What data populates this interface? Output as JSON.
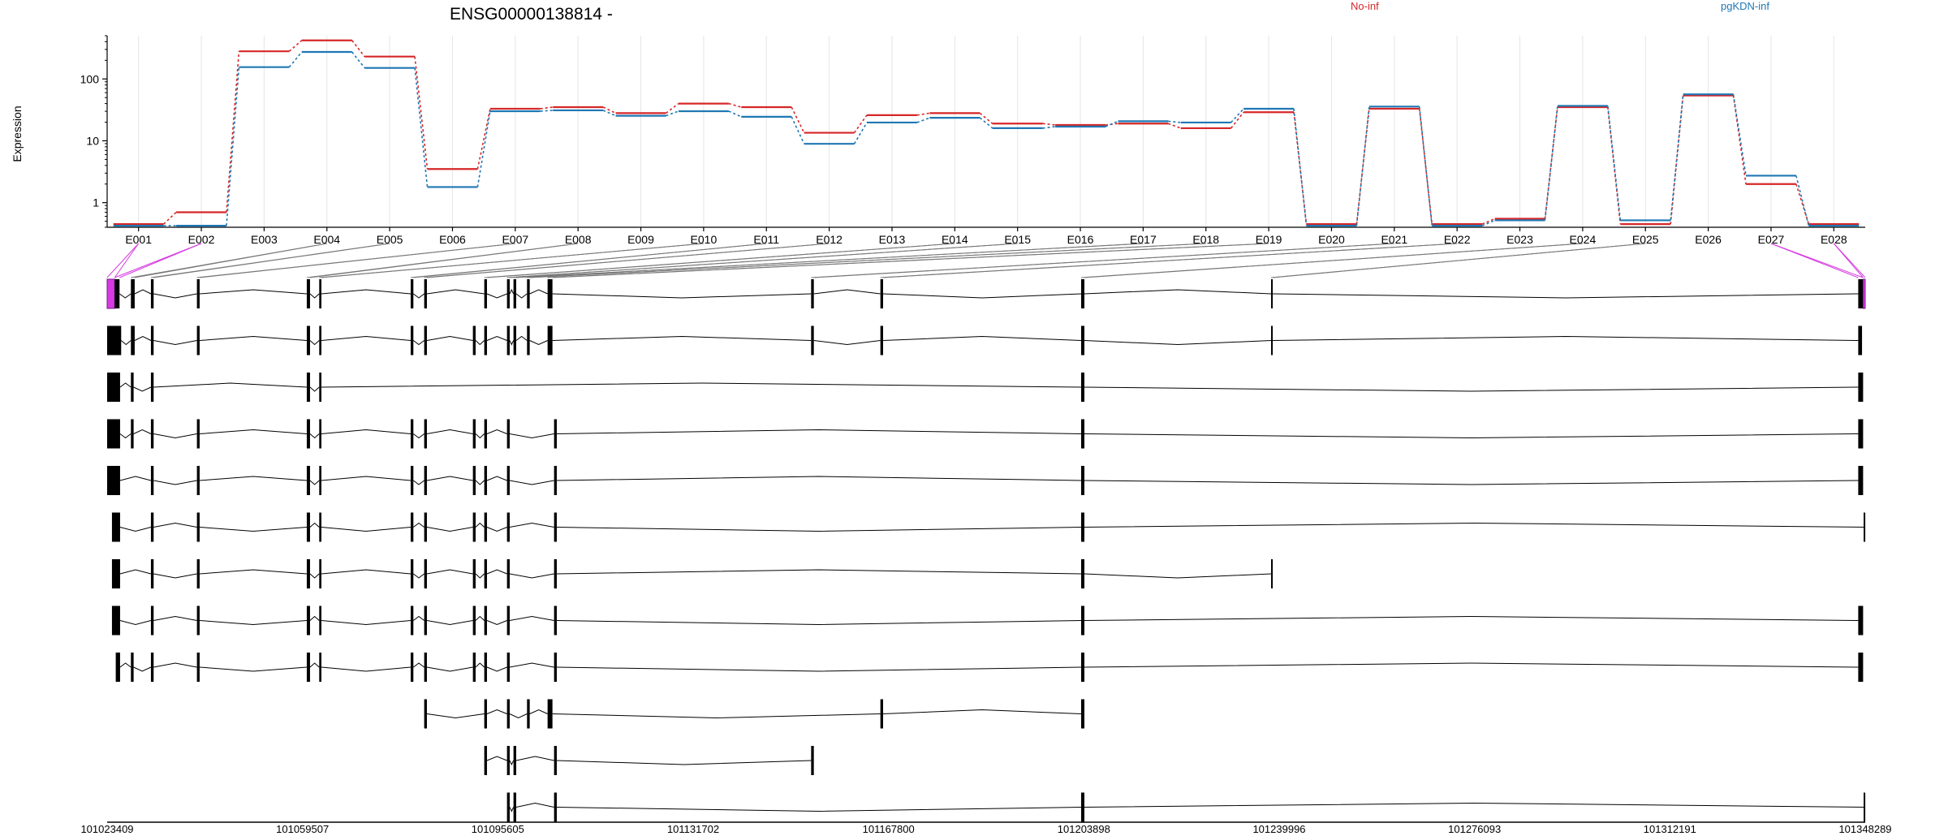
{
  "chart_data": {
    "type": "line",
    "title": "ENSG00000138814 -",
    "ylabel": "Expression",
    "yscale": "log",
    "ylim": [
      0.4,
      500
    ],
    "yticks": [
      1,
      10,
      100
    ],
    "grid": true,
    "legend_position": "top-right",
    "categories": [
      "E001",
      "E002",
      "E003",
      "E004",
      "E005",
      "E006",
      "E007",
      "E008",
      "E009",
      "E010",
      "E011",
      "E012",
      "E013",
      "E014",
      "E015",
      "E016",
      "E017",
      "E018",
      "E019",
      "E020",
      "E021",
      "E022",
      "E023",
      "E024",
      "E025",
      "E026",
      "E027",
      "E028"
    ],
    "series": [
      {
        "name": "No-inf",
        "color": "#d62728",
        "values": [
          0.45,
          0.7,
          280,
          420,
          230,
          3.5,
          33,
          35,
          28,
          40,
          35,
          13.5,
          26,
          28,
          19,
          18,
          19,
          16,
          29,
          0.45,
          33,
          0.45,
          0.55,
          35,
          0.45,
          54,
          2,
          0.45
        ]
      },
      {
        "name": "pgKDN-inf",
        "color": "#1f77b4",
        "values": [
          0.45,
          0.45,
          165,
          290,
          160,
          1.9,
          32,
          33,
          27,
          32,
          26,
          9.5,
          21,
          25,
          17,
          18,
          22,
          21,
          35,
          0.45,
          38,
          0.45,
          0.55,
          39,
          0.55,
          60,
          2.9,
          0.45
        ]
      }
    ],
    "exon_highlight_color": "#d63ae0",
    "exon_highlight_index": 25,
    "genomic_axis": {
      "range": [
        101023409,
        101348289
      ],
      "tick_labels": [
        "101023409",
        "101059507",
        "101095605",
        "101131702",
        "101167800",
        "101203898",
        "101239996",
        "101276093",
        "101312191",
        "101348289"
      ]
    },
    "exon_regions": [
      [
        101023409,
        101024800
      ],
      [
        101024800,
        101025700
      ],
      [
        101027800,
        101028500
      ],
      [
        101031500,
        101032000
      ],
      [
        101040000,
        101040500
      ],
      [
        101060300,
        101060900
      ],
      [
        101062600,
        101063000
      ],
      [
        101079500,
        101080000
      ],
      [
        101082000,
        101082500
      ],
      [
        101093100,
        101093600
      ],
      [
        101097300,
        101097800
      ],
      [
        101098500,
        101099000
      ],
      [
        101101000,
        101101500
      ],
      [
        101104800,
        101105700
      ],
      [
        101153500,
        101154000
      ],
      [
        101166300,
        101166800
      ],
      [
        101203400,
        101204000
      ],
      [
        101238500,
        101238800
      ],
      [
        101347000,
        101347900
      ],
      [
        101347900,
        101348289
      ]
    ],
    "transcripts": [
      {
        "exons": [
          [
            101023409,
            101026000
          ],
          [
            101027800,
            101028500
          ],
          [
            101031500,
            101032000
          ],
          [
            101040000,
            101040500
          ],
          [
            101060300,
            101060900
          ],
          [
            101062600,
            101063000
          ],
          [
            101079500,
            101080000
          ],
          [
            101082000,
            101082500
          ],
          [
            101091000,
            101091500
          ],
          [
            101093100,
            101093600
          ],
          [
            101097300,
            101097800
          ],
          [
            101098500,
            101099000
          ],
          [
            101101000,
            101101500
          ],
          [
            101104800,
            101105700
          ],
          [
            101153500,
            101154000
          ],
          [
            101166300,
            101166800
          ],
          [
            101203400,
            101204000
          ],
          [
            101238500,
            101238800
          ],
          [
            101347000,
            101347700
          ]
        ]
      },
      {
        "exons": [
          [
            101023409,
            101025800
          ],
          [
            101027800,
            101028300
          ],
          [
            101031500,
            101032000
          ],
          [
            101060300,
            101060900
          ],
          [
            101062600,
            101063000
          ],
          [
            101203400,
            101204000
          ],
          [
            101347000,
            101347900
          ]
        ]
      },
      {
        "exons": [
          [
            101023409,
            101025800
          ],
          [
            101027800,
            101028300
          ],
          [
            101031500,
            101032000
          ],
          [
            101040000,
            101040500
          ],
          [
            101060300,
            101060900
          ],
          [
            101062600,
            101063000
          ],
          [
            101079500,
            101080000
          ],
          [
            101082000,
            101082500
          ],
          [
            101091000,
            101091500
          ],
          [
            101093100,
            101093600
          ],
          [
            101097300,
            101097800
          ],
          [
            101106000,
            101106500
          ],
          [
            101203400,
            101204000
          ],
          [
            101347000,
            101347900
          ]
        ]
      },
      {
        "exons": [
          [
            101023409,
            101025800
          ],
          [
            101031500,
            101032000
          ],
          [
            101040000,
            101040500
          ],
          [
            101060300,
            101060900
          ],
          [
            101062600,
            101063000
          ],
          [
            101079500,
            101080000
          ],
          [
            101082000,
            101082500
          ],
          [
            101091000,
            101091500
          ],
          [
            101093100,
            101093600
          ],
          [
            101097300,
            101097800
          ],
          [
            101106000,
            101106500
          ],
          [
            101203400,
            101204000
          ],
          [
            101347000,
            101347900
          ]
        ]
      },
      {
        "exons": [
          [
            101024300,
            101025800
          ],
          [
            101031500,
            101032000
          ],
          [
            101040000,
            101040500
          ],
          [
            101060300,
            101060900
          ],
          [
            101062600,
            101063000
          ],
          [
            101079500,
            101080000
          ],
          [
            101082000,
            101082500
          ],
          [
            101091000,
            101091500
          ],
          [
            101093100,
            101093600
          ],
          [
            101097300,
            101097800
          ],
          [
            101106000,
            101106500
          ],
          [
            101203400,
            101204000
          ],
          [
            101348000,
            101348289
          ]
        ]
      },
      {
        "exons": [
          [
            101024300,
            101025800
          ],
          [
            101031500,
            101032000
          ],
          [
            101040000,
            101040500
          ],
          [
            101060300,
            101060900
          ],
          [
            101062600,
            101063000
          ],
          [
            101079500,
            101080000
          ],
          [
            101082000,
            101082500
          ],
          [
            101091000,
            101091500
          ],
          [
            101093100,
            101093600
          ],
          [
            101097300,
            101097800
          ],
          [
            101106000,
            101106500
          ],
          [
            101203400,
            101204000
          ],
          [
            101238500,
            101238800
          ]
        ]
      },
      {
        "exons": [
          [
            101024300,
            101025800
          ],
          [
            101031500,
            101032000
          ],
          [
            101040000,
            101040500
          ],
          [
            101060300,
            101060900
          ],
          [
            101062600,
            101063000
          ],
          [
            101079500,
            101080000
          ],
          [
            101082000,
            101082500
          ],
          [
            101091000,
            101091500
          ],
          [
            101093100,
            101093600
          ],
          [
            101097300,
            101097800
          ],
          [
            101106000,
            101106500
          ],
          [
            101203400,
            101204000
          ],
          [
            101347000,
            101347900
          ]
        ]
      },
      {
        "exons": [
          [
            101025000,
            101025800
          ],
          [
            101027800,
            101028300
          ],
          [
            101031500,
            101032000
          ],
          [
            101040000,
            101040500
          ],
          [
            101060300,
            101060900
          ],
          [
            101062600,
            101063000
          ],
          [
            101079500,
            101080000
          ],
          [
            101082000,
            101082500
          ],
          [
            101091000,
            101091500
          ],
          [
            101093100,
            101093600
          ],
          [
            101097300,
            101097800
          ],
          [
            101106000,
            101106500
          ],
          [
            101203400,
            101204000
          ],
          [
            101347000,
            101347900
          ]
        ]
      },
      {
        "exons": [
          [
            101082000,
            101082500
          ],
          [
            101093100,
            101093600
          ],
          [
            101097300,
            101097800
          ],
          [
            101101000,
            101101500
          ],
          [
            101104800,
            101105700
          ],
          [
            101166300,
            101166800
          ],
          [
            101203400,
            101204000
          ]
        ]
      },
      {
        "exons": [
          [
            101093100,
            101093600
          ],
          [
            101097300,
            101097800
          ],
          [
            101098500,
            101099000
          ],
          [
            101106000,
            101106500
          ],
          [
            101153500,
            101154000
          ]
        ]
      },
      {
        "exons": [
          [
            101097300,
            101097800
          ],
          [
            101098500,
            101099000
          ],
          [
            101106000,
            101106500
          ],
          [
            101203400,
            101204000
          ],
          [
            101348000,
            101348289
          ]
        ]
      },
      {
        "exons": [
          [
            101097300,
            101097800
          ],
          [
            101098500,
            101099000
          ],
          [
            101106000,
            101106500
          ],
          [
            101203400,
            101204000
          ],
          [
            101347000,
            101347700
          ]
        ]
      }
    ]
  }
}
